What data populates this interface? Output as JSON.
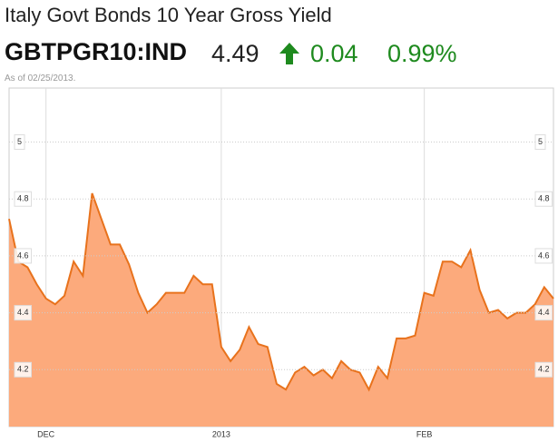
{
  "header": {
    "title": "Italy Govt Bonds 10 Year Gross Yield",
    "ticker": "GBTPGR10:IND",
    "price": "4.49",
    "change": "0.04",
    "percent": "0.99%",
    "as_of": "As of 02/25/2013."
  },
  "chart_data": {
    "type": "area",
    "color": "#fcaa7c",
    "line_color": "#e8721c",
    "categories": [
      null,
      null,
      null,
      null,
      "DEC",
      null,
      null,
      null,
      null,
      null,
      null,
      null,
      null,
      null,
      null,
      null,
      null,
      null,
      null,
      null,
      null,
      null,
      null,
      "2013",
      null,
      null,
      null,
      null,
      null,
      null,
      null,
      null,
      null,
      null,
      null,
      null,
      null,
      null,
      null,
      null,
      null,
      null,
      null,
      null,
      null,
      "FEB",
      null,
      null,
      null,
      null,
      null,
      null,
      null,
      null,
      null,
      null,
      null,
      null,
      null,
      null
    ],
    "values": [
      4.73,
      4.58,
      4.56,
      4.5,
      4.45,
      4.43,
      4.46,
      4.58,
      4.53,
      4.82,
      4.73,
      4.64,
      4.64,
      4.57,
      4.47,
      4.4,
      4.43,
      4.47,
      4.47,
      4.47,
      4.53,
      4.5,
      4.5,
      4.28,
      4.23,
      4.27,
      4.35,
      4.29,
      4.28,
      4.15,
      4.13,
      4.19,
      4.21,
      4.18,
      4.2,
      4.17,
      4.23,
      4.2,
      4.19,
      4.13,
      4.21,
      4.17,
      4.31,
      4.31,
      4.32,
      4.47,
      4.46,
      4.58,
      4.58,
      4.56,
      4.62,
      4.48,
      4.4,
      4.41,
      4.38,
      4.4,
      4.4,
      4.43,
      4.49,
      4.45
    ],
    "ylim": [
      4.0,
      5.19
    ],
    "yticks": [
      4.2,
      4.4,
      4.6,
      4.8,
      5
    ],
    "grid": true
  }
}
